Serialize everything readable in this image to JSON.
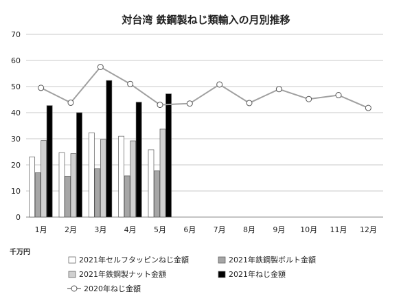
{
  "chart_data": {
    "type": "bar",
    "title": "対台湾 鉄鋼製ねじ類輸入の月別推移",
    "unit_label": "千万円",
    "categories": [
      "1月",
      "2月",
      "3月",
      "4月",
      "5月",
      "6月",
      "7月",
      "8月",
      "9月",
      "10月",
      "11月",
      "12月"
    ],
    "ylim": [
      0,
      70
    ],
    "yticks": [
      0,
      10,
      20,
      30,
      40,
      50,
      60,
      70
    ],
    "grid": true,
    "legend_position": "bottom",
    "series": [
      {
        "name": "2021年セルフタッピンねじ金額",
        "kind": "bar",
        "color": "#ffffff",
        "values": [
          23.0,
          24.7,
          32.3,
          31.0,
          25.8,
          null,
          null,
          null,
          null,
          null,
          null,
          null
        ]
      },
      {
        "name": "2021年鉄鋼製ボルト金額",
        "kind": "bar",
        "color": "#a6a6a6",
        "values": [
          17.0,
          15.7,
          18.5,
          15.8,
          17.7,
          null,
          null,
          null,
          null,
          null,
          null,
          null
        ]
      },
      {
        "name": "2021年鉄鋼製ナット金額",
        "kind": "bar",
        "color": "#d0d0d0",
        "values": [
          29.3,
          24.3,
          29.7,
          29.2,
          33.7,
          null,
          null,
          null,
          null,
          null,
          null,
          null
        ]
      },
      {
        "name": "2021年ねじ金額",
        "kind": "bar",
        "color": "#000000",
        "values": [
          42.7,
          40.0,
          52.3,
          44.0,
          47.2,
          null,
          null,
          null,
          null,
          null,
          null,
          null
        ]
      },
      {
        "name": "2020年ねじ金額",
        "kind": "line",
        "color": "#a0a0a0",
        "values": [
          49.5,
          43.8,
          57.5,
          51.0,
          43.0,
          43.5,
          50.8,
          43.7,
          49.0,
          45.2,
          46.7,
          41.8
        ]
      }
    ]
  }
}
